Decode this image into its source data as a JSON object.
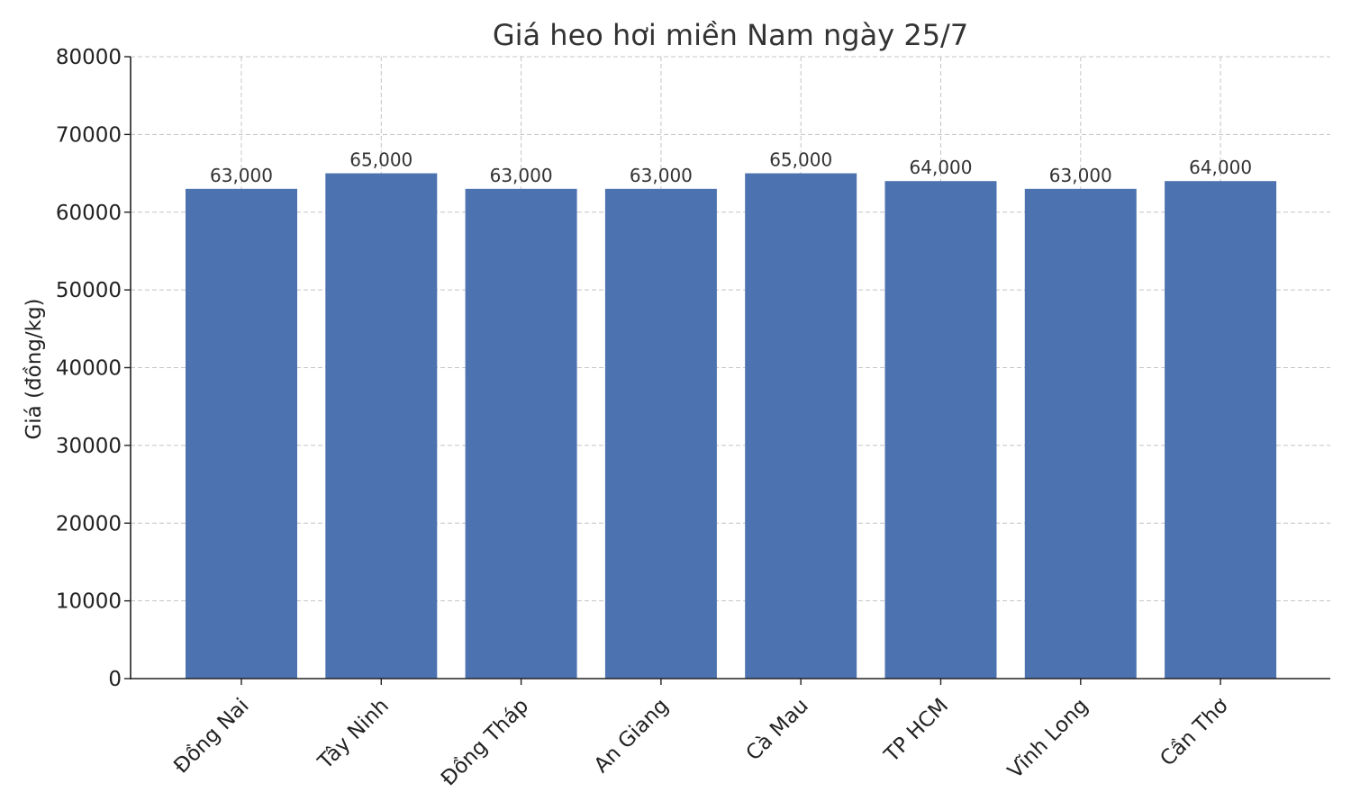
{
  "chart_data": {
    "type": "bar",
    "title": "Giá heo hơi miền Nam ngày 25/7",
    "xlabel": "",
    "ylabel": "Giá (đồng/kg)",
    "ylim": [
      0,
      80000
    ],
    "yticks": [
      0,
      10000,
      20000,
      30000,
      40000,
      50000,
      60000,
      70000,
      80000
    ],
    "ytick_labels": [
      "0",
      "10000",
      "20000",
      "30000",
      "40000",
      "50000",
      "60000",
      "70000",
      "80000"
    ],
    "categories": [
      "Đồng Nai",
      "Tây Ninh",
      "Đồng Tháp",
      "An Giang",
      "Cà Mau",
      "TP HCM",
      "Vĩnh Long",
      "Cần Thơ"
    ],
    "values": [
      63000,
      65000,
      63000,
      63000,
      65000,
      64000,
      63000,
      64000
    ],
    "data_labels": [
      "63,000",
      "65,000",
      "63,000",
      "63,000",
      "65,000",
      "64,000",
      "63,000",
      "64,000"
    ],
    "bar_color": "#4c72b0",
    "grid": true
  }
}
